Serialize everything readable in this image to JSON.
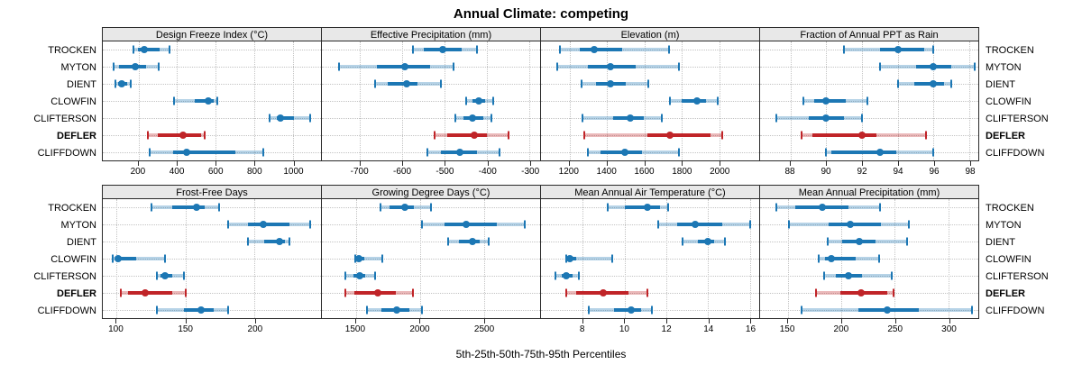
{
  "title": "Annual Climate: competing",
  "xlabel": "5th-25th-50th-75th-95th Percentiles",
  "stations": [
    "TROCKEN",
    "MYTON",
    "DIENT",
    "CLOWFIN",
    "CLIFTERSON",
    "DEFLER",
    "CLIFFDOWN"
  ],
  "highlight_station": "DEFLER",
  "colors": {
    "normal": "#1c77b4",
    "normal_band": "rgba(28,119,180,0.32)",
    "highlight": "#c02428",
    "highlight_band": "rgba(192,36,40,0.32)",
    "strip_bg": "#e8e8e8",
    "grid": "#c3c3c3",
    "border": "#2a2a2a"
  },
  "chart_data": {
    "type": "scatter",
    "subtype": "dot-with-percentile-intervals",
    "percentiles": [
      "5th",
      "25th",
      "50th",
      "75th",
      "95th"
    ],
    "title": "Annual Climate: competing",
    "xlabel": "5th-25th-50th-75th-95th Percentiles",
    "grid": true,
    "layout": "2 rows x 4 columns, free x scales, shared station y-axis",
    "panels": [
      {
        "title": "Design Freeze Index (°C)",
        "xlim": [
          15,
          1146
        ],
        "ticks": [
          200,
          400,
          600,
          800,
          1000
        ],
        "tick_labels": [
          "200",
          "400",
          "600",
          "800",
          "1000"
        ],
        "values": [
          [
            175,
            195,
            230,
            310,
            360
          ],
          [
            70,
            100,
            185,
            240,
            305
          ],
          [
            80,
            95,
            115,
            140,
            160
          ],
          [
            385,
            490,
            560,
            590,
            610
          ],
          [
            880,
            915,
            935,
            1005,
            1090
          ],
          [
            250,
            300,
            430,
            525,
            545
          ],
          [
            260,
            380,
            450,
            700,
            845
          ]
        ]
      },
      {
        "title": "Effective Precipitation (mm)",
        "xlim": [
          -790,
          -275
        ],
        "ticks": [
          -700,
          -600,
          -500,
          -400,
          -300
        ],
        "tick_labels": [
          "-700",
          "-600",
          "-500",
          "-400",
          "-300"
        ],
        "values": [
          [
            -575,
            -550,
            -505,
            -460,
            -425
          ],
          [
            -750,
            -660,
            -595,
            -535,
            -480
          ],
          [
            -665,
            -635,
            -590,
            -565,
            -510
          ],
          [
            -450,
            -435,
            -420,
            -405,
            -385
          ],
          [
            -475,
            -455,
            -435,
            -410,
            -390
          ],
          [
            -525,
            -495,
            -430,
            -400,
            -350
          ],
          [
            -540,
            -510,
            -465,
            -425,
            -370
          ]
        ]
      },
      {
        "title": "Elevation (m)",
        "xlim": [
          1048,
          2214
        ],
        "ticks": [
          1200,
          1400,
          1600,
          1800,
          2000
        ],
        "tick_labels": [
          "1200",
          "1400",
          "1600",
          "1800",
          "2000"
        ],
        "values": [
          [
            1150,
            1255,
            1330,
            1480,
            1730
          ],
          [
            1135,
            1300,
            1420,
            1555,
            1785
          ],
          [
            1265,
            1340,
            1420,
            1500,
            1620
          ],
          [
            1735,
            1800,
            1880,
            1930,
            1990
          ],
          [
            1270,
            1435,
            1525,
            1595,
            1695
          ],
          [
            1280,
            1615,
            1735,
            1955,
            2015
          ],
          [
            1300,
            1365,
            1495,
            1590,
            1785
          ]
        ]
      },
      {
        "title": "Fraction of Annual PPT as Rain",
        "xlim": [
          86.3,
          98.5
        ],
        "ticks": [
          88,
          90,
          92,
          94,
          96,
          98
        ],
        "tick_labels": [
          "88",
          "90",
          "92",
          "94",
          "96",
          "98"
        ],
        "values": [
          [
            91,
            93,
            94,
            95.5,
            96
          ],
          [
            93,
            95,
            96,
            97,
            98.3
          ],
          [
            94,
            94.9,
            96,
            96.6,
            97
          ],
          [
            88.7,
            89.3,
            90,
            91.1,
            92.3
          ],
          [
            87.2,
            89,
            90,
            91,
            92
          ],
          [
            88.6,
            89.2,
            92,
            92.8,
            95.6
          ],
          [
            90,
            90.3,
            93,
            93.9,
            96
          ]
        ]
      },
      {
        "title": "Frost-Free Days",
        "xlim": [
          90,
          248
        ],
        "ticks": [
          100,
          150,
          200
        ],
        "tick_labels": [
          "100",
          "150",
          "200"
        ],
        "values": [
          [
            125,
            140,
            158,
            164,
            174
          ],
          [
            181,
            195,
            206,
            225,
            240
          ],
          [
            195,
            207,
            218,
            222,
            225
          ],
          [
            97,
            99,
            101,
            114,
            135
          ],
          [
            129,
            132,
            135,
            140,
            149
          ],
          [
            103,
            108,
            121,
            140,
            150
          ],
          [
            129,
            149,
            161,
            170,
            181
          ]
        ]
      },
      {
        "title": "Growing Degree Days (°C)",
        "xlim": [
          1235,
          2940
        ],
        "ticks": [
          1500,
          2000,
          2500
        ],
        "tick_labels": [
          "1500",
          "2000",
          "2500"
        ],
        "values": [
          [
            1690,
            1760,
            1880,
            1955,
            2090
          ],
          [
            2020,
            2190,
            2360,
            2600,
            2820
          ],
          [
            2220,
            2305,
            2410,
            2470,
            2540
          ],
          [
            1495,
            1510,
            1525,
            1565,
            1710
          ],
          [
            1420,
            1480,
            1530,
            1570,
            1650
          ],
          [
            1420,
            1490,
            1670,
            1810,
            1950
          ],
          [
            1590,
            1700,
            1820,
            1920,
            2020
          ]
        ]
      },
      {
        "title": "Mean Annual Air Temperature (°C)",
        "xlim": [
          6.0,
          16.45
        ],
        "ticks": [
          8,
          10,
          12,
          14,
          16
        ],
        "tick_labels": [
          "8",
          "10",
          "12",
          "14",
          "16"
        ],
        "values": [
          [
            9.2,
            10.0,
            11.1,
            11.7,
            12.1
          ],
          [
            11.6,
            12.5,
            13.4,
            14.7,
            16.0
          ],
          [
            12.8,
            13.5,
            14.0,
            14.3,
            14.8
          ],
          [
            7.2,
            7.3,
            7.4,
            7.7,
            9.4
          ],
          [
            6.7,
            7.0,
            7.2,
            7.5,
            7.8
          ],
          [
            7.2,
            7.7,
            9.0,
            10.2,
            11.1
          ],
          [
            8.3,
            9.5,
            10.3,
            10.8,
            11.3
          ]
        ]
      },
      {
        "title": "Mean Annual Precipitation (mm)",
        "xlim": [
          124,
          328
        ],
        "ticks": [
          150,
          200,
          250,
          300
        ],
        "tick_labels": [
          "150",
          "200",
          "250",
          "300"
        ],
        "values": [
          [
            139,
            157,
            182,
            207,
            236
          ],
          [
            151,
            188,
            208,
            237,
            263
          ],
          [
            187,
            201,
            217,
            232,
            261
          ],
          [
            179,
            185,
            191,
            213,
            235
          ],
          [
            184,
            195,
            207,
            219,
            247
          ],
          [
            176,
            199,
            218,
            243,
            249
          ],
          [
            163,
            216,
            243,
            272,
            322
          ]
        ]
      }
    ]
  }
}
